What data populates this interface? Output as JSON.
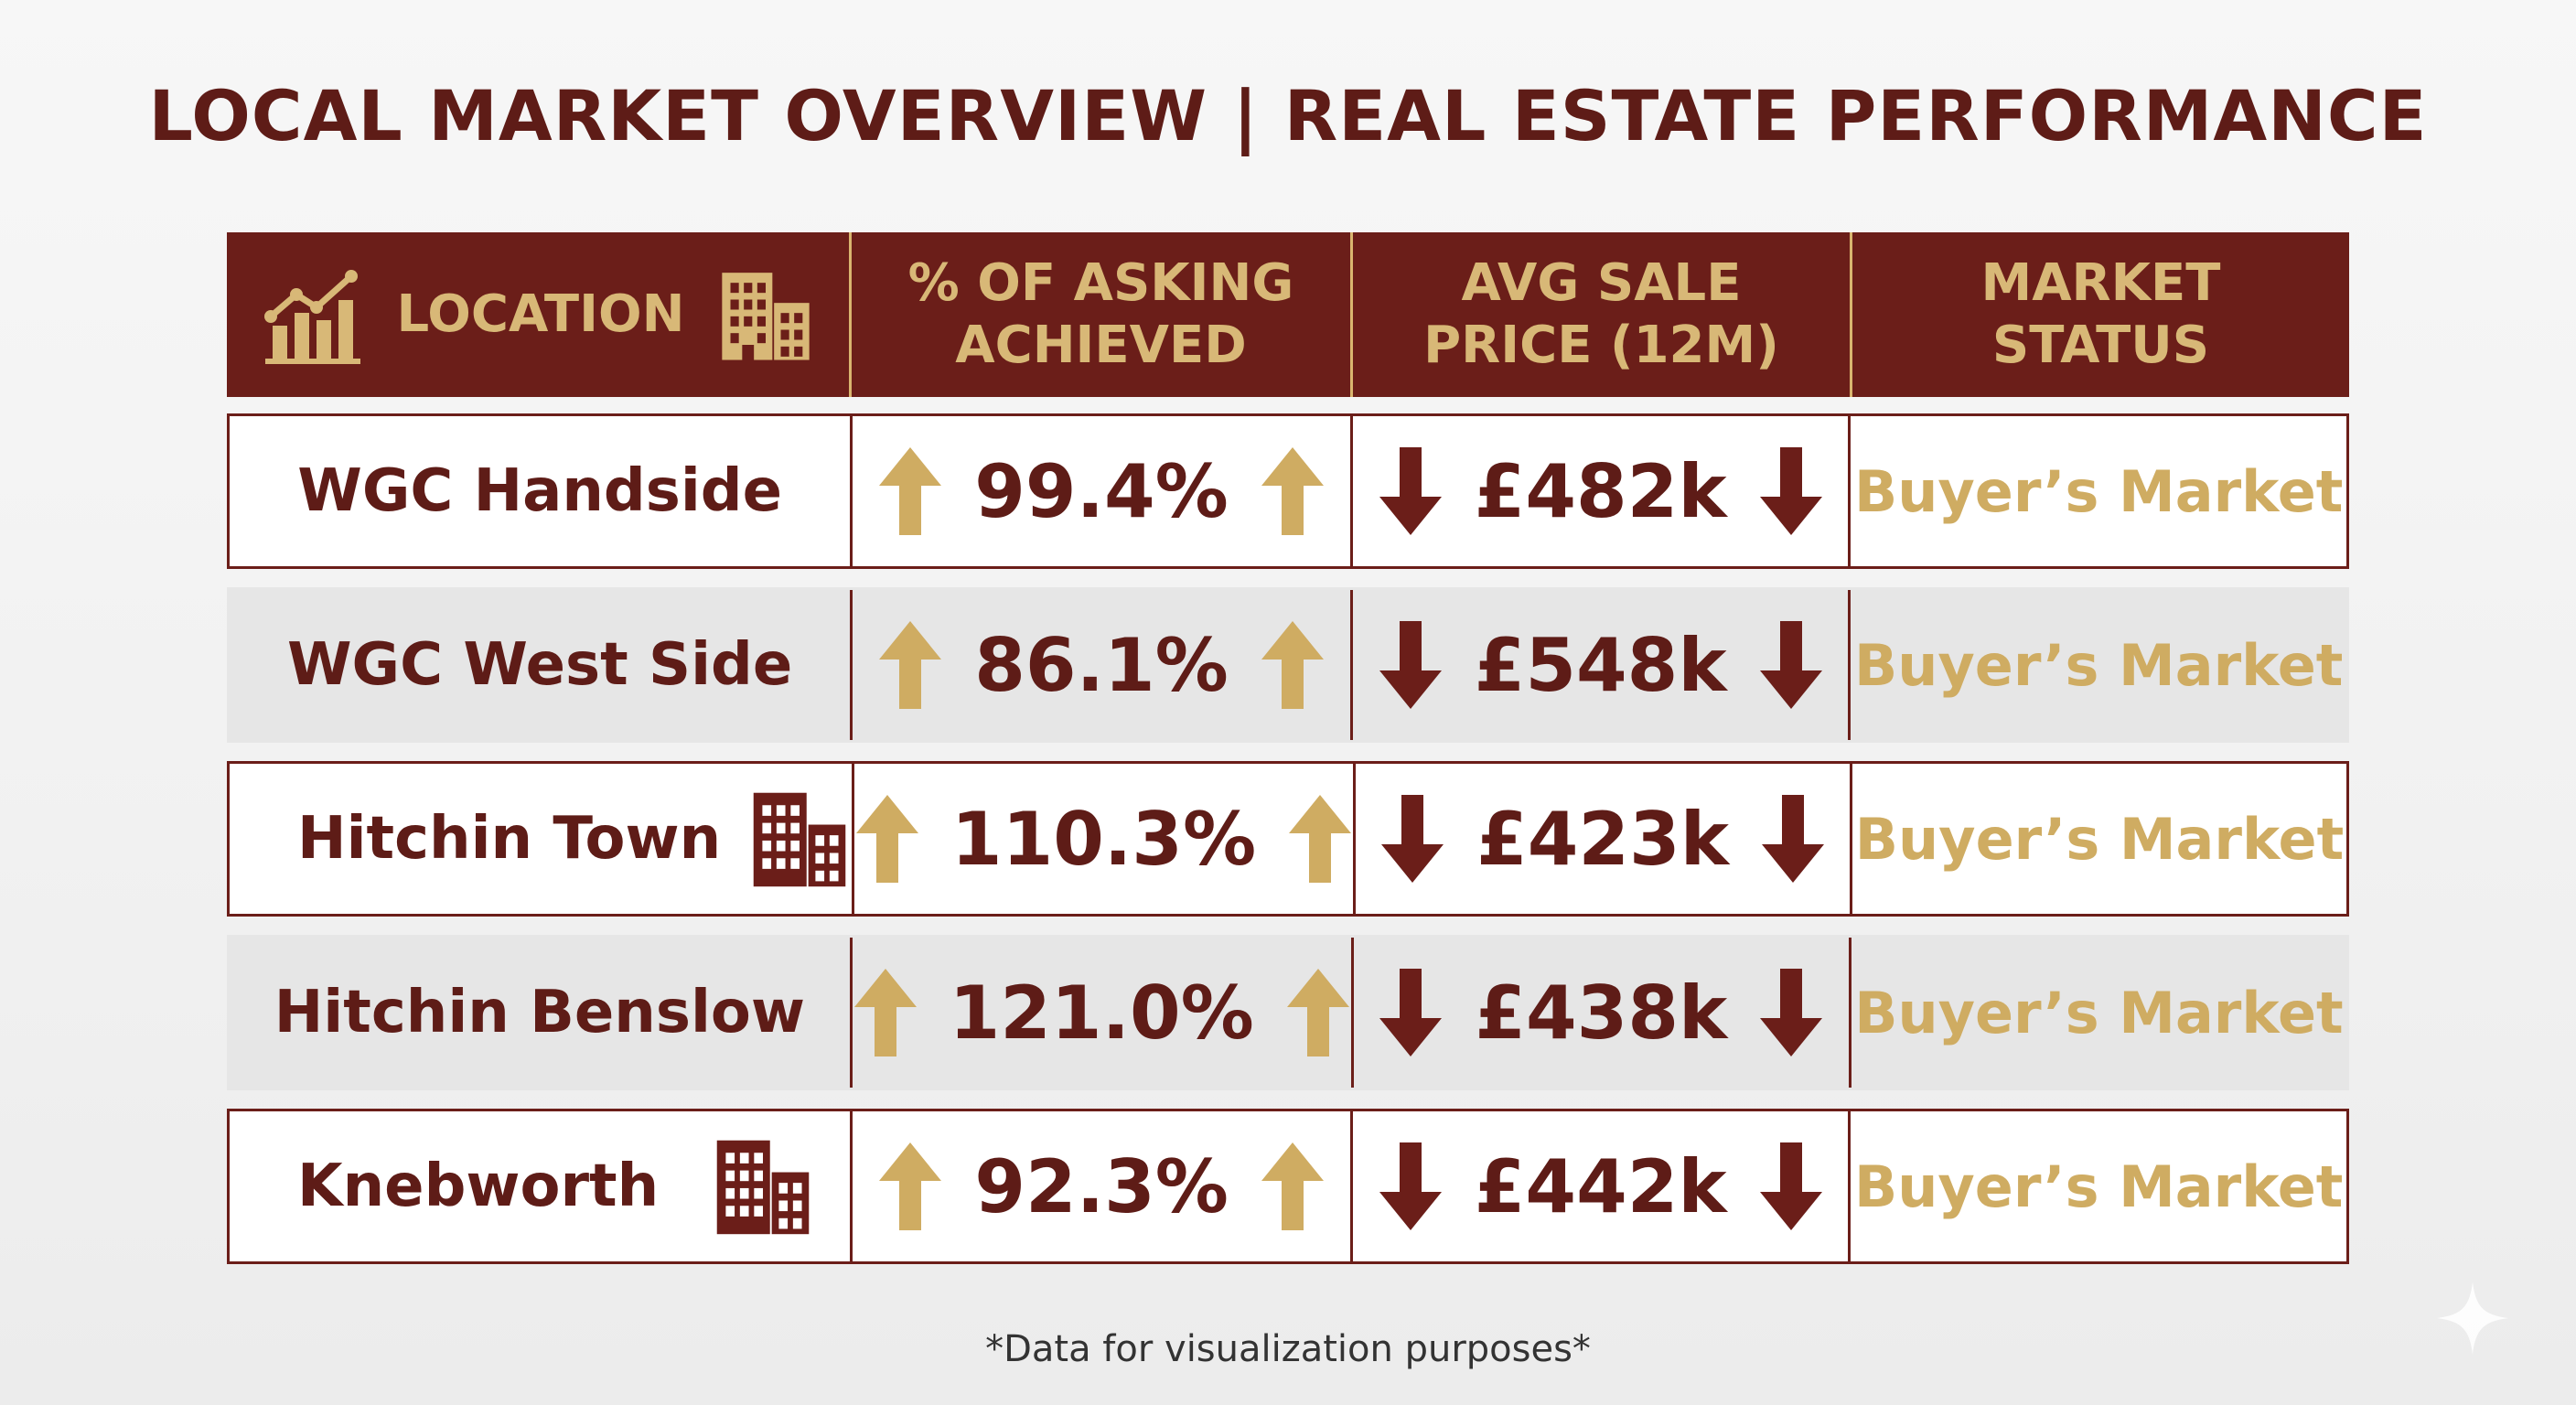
{
  "title": "LOCAL MARKET OVERVIEW | REAL ESTATE PERFORMANCE",
  "footnote": "*Data for visualization purposes*",
  "colors": {
    "maroon": "#6b1e19",
    "gold": "#d8b877",
    "up_arrow": "#cfac62",
    "down_arrow": "#6b1e19"
  },
  "icons": {
    "header_left": "bar-chart-trend-icon",
    "header_right": "building-icon",
    "row_building": "building-icon",
    "up": "arrow-up-icon",
    "down": "arrow-down-icon"
  },
  "chart_data": {
    "type": "table",
    "title": "LOCAL MARKET OVERVIEW | REAL ESTATE PERFORMANCE",
    "columns": [
      "LOCATION",
      "% OF ASKING\nACHIEVED",
      "AVG SALE\nPRICE (12M)",
      "MARKET\nSTATUS"
    ],
    "rows": [
      {
        "location": "WGC Handside",
        "pct_asking": "99.4%",
        "avg_price": "£482k",
        "status": "Buyer’s Market",
        "building_icon": false
      },
      {
        "location": "WGC West Side",
        "pct_asking": "86.1%",
        "avg_price": "£548k",
        "status": "Buyer’s Market",
        "building_icon": false
      },
      {
        "location": "Hitchin Town",
        "pct_asking": "110.3%",
        "avg_price": "£423k",
        "status": "Buyer’s Market",
        "building_icon": true
      },
      {
        "location": "Hitchin Benslow",
        "pct_asking": "121.0%",
        "avg_price": "£438k",
        "status": "Buyer’s Market",
        "building_icon": false
      },
      {
        "location": "Knebworth",
        "pct_asking": "92.3%",
        "avg_price": "£442k",
        "status": "Buyer’s Market",
        "building_icon": true
      }
    ],
    "pct_asking_values": [
      99.4,
      86.1,
      110.3,
      121.0,
      92.3
    ],
    "avg_price_values_k_gbp": [
      482,
      548,
      423,
      438,
      442
    ],
    "pct_asking_trend": "up",
    "avg_price_trend": "down"
  }
}
